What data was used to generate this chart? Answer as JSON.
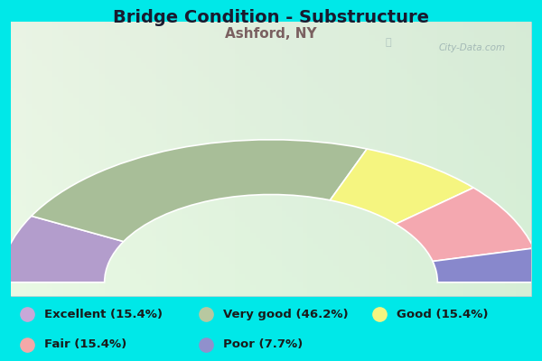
{
  "title": "Bridge Condition - Substructure",
  "subtitle": "Ashford, NY",
  "title_color": "#1a1a2e",
  "subtitle_color": "#7a6060",
  "background_cyan": "#00e8e8",
  "chart_bg_color": "#e0ede0",
  "categories": [
    "Excellent",
    "Very good",
    "Good",
    "Fair",
    "Poor"
  ],
  "percentages": [
    15.4,
    46.2,
    15.4,
    15.4,
    7.7
  ],
  "colors": [
    "#b39dcc",
    "#a8be98",
    "#f5f580",
    "#f4a8b0",
    "#8888cc"
  ],
  "legend_labels": [
    "Excellent (15.4%)",
    "Very good (46.2%)",
    "Good (15.4%)",
    "Fair (15.4%)",
    "Poor (7.7%)"
  ],
  "legend_colors": [
    "#c8a8d8",
    "#b8c8a0",
    "#f5f580",
    "#f4a8a8",
    "#9090cc"
  ],
  "watermark": "City-Data.com"
}
